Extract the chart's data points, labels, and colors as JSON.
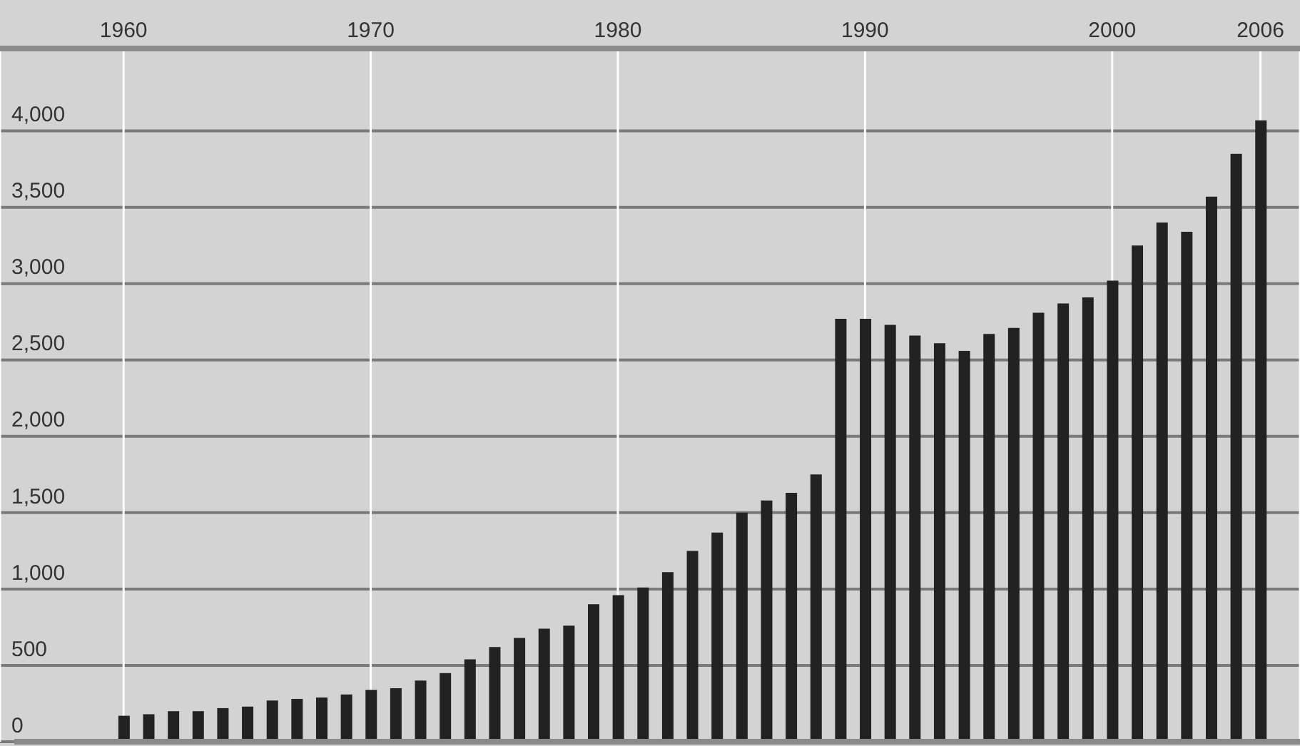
{
  "chart_data": {
    "type": "bar",
    "x": [
      1960,
      1961,
      1962,
      1963,
      1964,
      1965,
      1966,
      1967,
      1968,
      1969,
      1970,
      1971,
      1972,
      1973,
      1974,
      1975,
      1976,
      1977,
      1978,
      1979,
      1980,
      1981,
      1982,
      1983,
      1984,
      1985,
      1986,
      1987,
      1988,
      1989,
      1990,
      1991,
      1992,
      1993,
      1994,
      1995,
      1996,
      1997,
      1998,
      1999,
      2000,
      2001,
      2002,
      2003,
      2004,
      2005,
      2006
    ],
    "values": [
      170,
      180,
      200,
      200,
      220,
      230,
      270,
      280,
      290,
      310,
      340,
      350,
      400,
      450,
      540,
      620,
      680,
      740,
      760,
      900,
      960,
      1010,
      1110,
      1250,
      1370,
      1500,
      1580,
      1630,
      1750,
      2770,
      2770,
      2730,
      2660,
      2610,
      2560,
      2670,
      2710,
      2810,
      2870,
      2910,
      3020,
      3250,
      3400,
      3340,
      3570,
      3850,
      4070
    ],
    "color": "#222222",
    "xlim": [
      1955,
      2007.6
    ],
    "xticks": [
      1960,
      1970,
      1980,
      1990,
      2000,
      2006
    ],
    "ylim": [
      0,
      4540
    ],
    "yticks": [
      0,
      500,
      {
        "value": 1000,
        "label": "1,000"
      },
      {
        "value": 1500,
        "label": "1,500"
      },
      {
        "value": 2000,
        "label": "2,000"
      },
      {
        "value": 2500,
        "label": "2,500"
      },
      {
        "value": 3000,
        "label": "3,000"
      },
      {
        "value": 3500,
        "label": "3,500"
      },
      {
        "value": 4000,
        "label": "4,000"
      }
    ],
    "grid": true
  }
}
